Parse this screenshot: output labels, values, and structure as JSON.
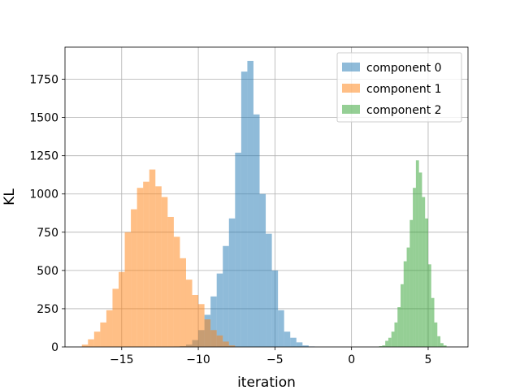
{
  "chart_data": {
    "type": "bar",
    "subtype": "histogram",
    "xlabel": "iteration",
    "ylabel": "KL",
    "xlim": [
      -18.7,
      7.6
    ],
    "ylim": [
      0,
      1960
    ],
    "xticks": [
      -15,
      -10,
      -5,
      0,
      5
    ],
    "xtick_labels": [
      "−15",
      "−10",
      "−5",
      "0",
      "5"
    ],
    "yticks": [
      0,
      250,
      500,
      750,
      1000,
      1250,
      1500,
      1750
    ],
    "ytick_labels": [
      "0",
      "250",
      "500",
      "750",
      "1000",
      "1250",
      "1500",
      "1750"
    ],
    "grid": true,
    "legend_position": "top-right",
    "series": [
      {
        "name": "component 0",
        "color": "#1f77b4",
        "alpha": 0.5,
        "bin_start": -11.6,
        "bin_width": 0.4,
        "counts": [
          2,
          5,
          15,
          45,
          110,
          210,
          330,
          480,
          660,
          840,
          1270,
          1800,
          1870,
          1520,
          1000,
          740,
          500,
          240,
          100,
          60,
          30,
          10,
          3
        ]
      },
      {
        "name": "component 1",
        "color": "#ff7f0e",
        "alpha": 0.5,
        "bin_start": -17.6,
        "bin_width": 0.4,
        "counts": [
          15,
          50,
          100,
          160,
          240,
          380,
          490,
          750,
          900,
          1040,
          1080,
          1160,
          1050,
          980,
          850,
          720,
          580,
          440,
          340,
          280,
          180,
          110,
          75,
          35,
          10
        ]
      },
      {
        "name": "component 2",
        "color": "#2ca02c",
        "alpha": 0.5,
        "bin_start": 1.8,
        "bin_width": 0.2,
        "counts": [
          5,
          10,
          40,
          60,
          100,
          160,
          260,
          410,
          560,
          650,
          830,
          1040,
          1220,
          1140,
          980,
          840,
          540,
          320,
          160,
          70,
          25,
          10
        ]
      }
    ]
  }
}
